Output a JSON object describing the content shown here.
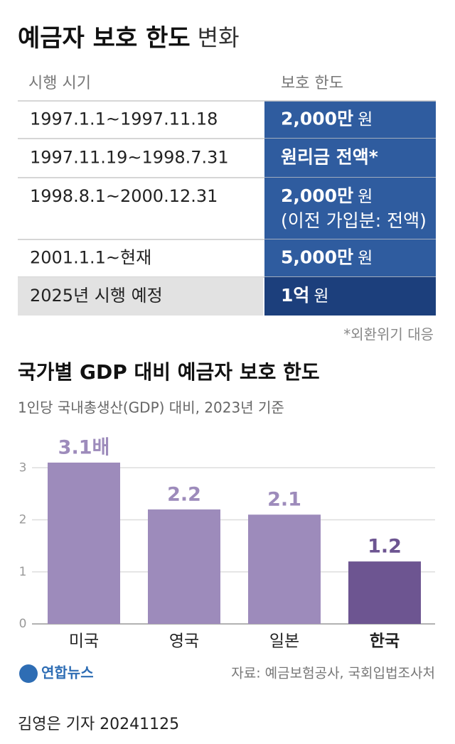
{
  "header": {
    "title_bold": "예금자 보호 한도",
    "title_rest": "변화"
  },
  "table": {
    "columns": [
      "시행 시기",
      "보호 한도"
    ],
    "rows": [
      [
        "1997.1.1~1997.11.18",
        {
          "bold": "2,000만",
          "rest": "원"
        }
      ],
      [
        "1997.11.19~1998.7.31",
        {
          "bold": "원리금 전액*"
        }
      ],
      [
        "1998.8.1~2000.12.31",
        {
          "bold": "2,000만",
          "rest": "원",
          "line2": "(이전 가입분: 전액)"
        }
      ],
      [
        "2001.1.1~현재",
        {
          "bold": "5,000만",
          "rest": "원"
        }
      ],
      [
        "2025년 시행 예정",
        {
          "bold": "1억",
          "rest": "원"
        }
      ]
    ],
    "note": "*외환위기 대응"
  },
  "chart_data": {
    "type": "bar",
    "title": "국가별 GDP 대비 예금자 보호 한도",
    "subtitle": "1인당 국내총생산(GDP) 대비, 2023년 기준",
    "categories": [
      "미국",
      "영국",
      "일본",
      "한국"
    ],
    "values": [
      3.1,
      2.2,
      2.1,
      1.2
    ],
    "value_labels": [
      "3.1배",
      "2.2",
      "2.1",
      "1.2"
    ],
    "colors": [
      "#9d8bbb",
      "#9d8bbb",
      "#9d8bbb",
      "#6d5591"
    ],
    "ylim": [
      0,
      3.25
    ],
    "yticks": [
      0,
      1,
      2,
      3
    ],
    "grid": true
  },
  "footer": {
    "logo": "연합뉴스",
    "source": "자료: 예금보험공사, 국회입법조사처",
    "credit": "김영은 기자  20241125"
  }
}
